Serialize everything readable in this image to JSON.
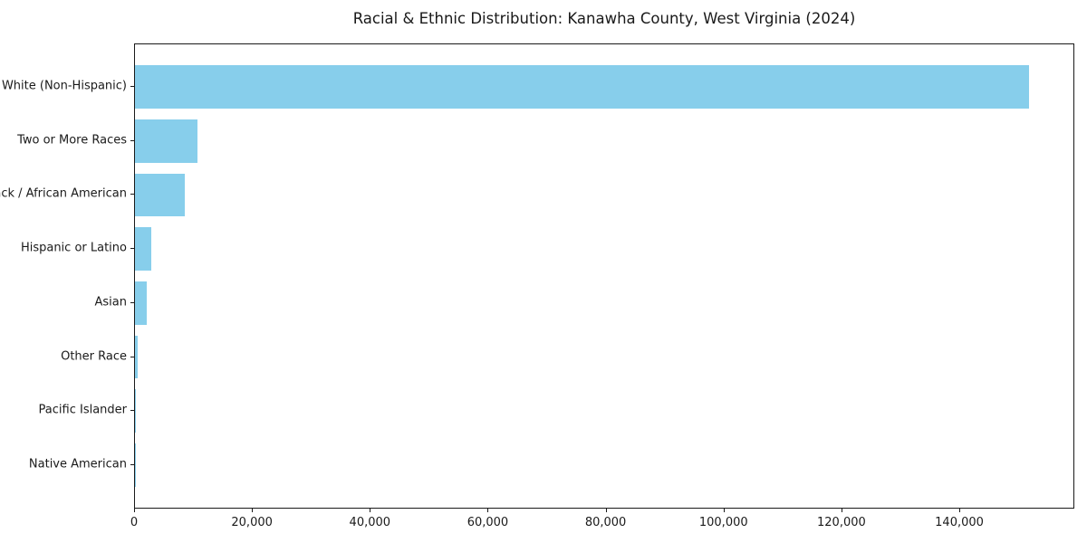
{
  "chart_data": {
    "type": "bar",
    "orientation": "horizontal",
    "title": "Racial & Ethnic Distribution: Kanawha County, West Virginia (2024)",
    "categories": [
      "White (Non-Hispanic)",
      "Two or More Races",
      "Black / African American",
      "Hispanic or Latino",
      "Asian",
      "Other Race",
      "Pacific Islander",
      "Native American"
    ],
    "values": [
      151700,
      10600,
      8450,
      2770,
      2000,
      470,
      140,
      40
    ],
    "xlabel": "",
    "ylabel": "",
    "xlim": [
      0,
      159200
    ],
    "xticks": [
      0,
      20000,
      40000,
      60000,
      80000,
      100000,
      120000,
      140000
    ],
    "xtick_labels": [
      "0",
      "20,000",
      "40,000",
      "60,000",
      "80,000",
      "100,000",
      "120,000",
      "140,000"
    ],
    "bar_color": "#87CEEB",
    "axis_color": "#1a1a1a",
    "background_color": "#ffffff",
    "grid": false,
    "legend": "none"
  }
}
